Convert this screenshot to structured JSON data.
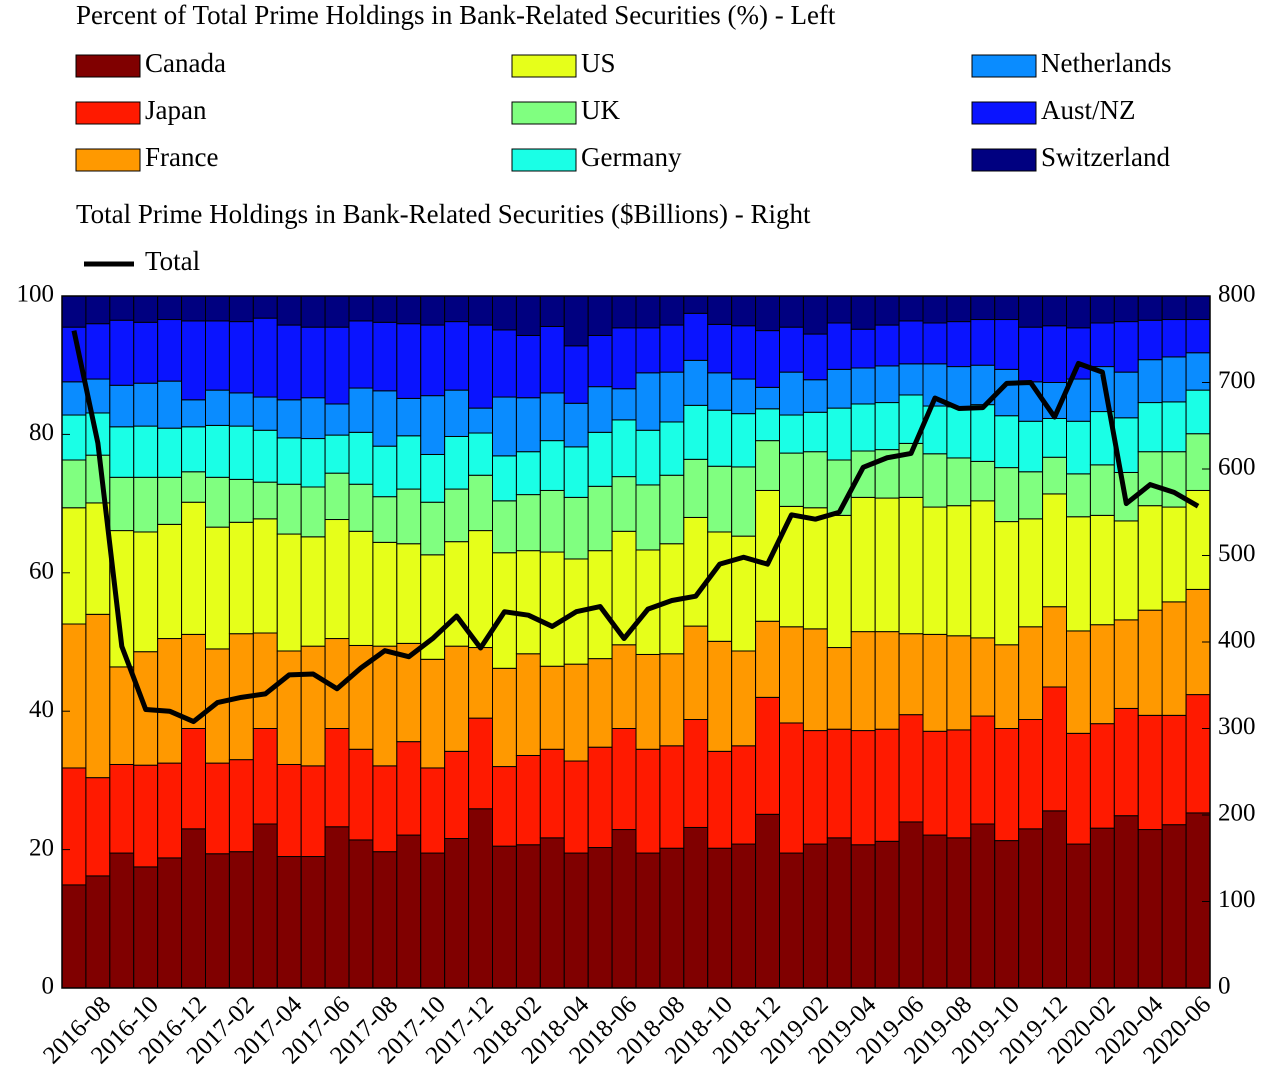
{
  "chart_data": {
    "type": "bar",
    "stacked": true,
    "title": "Percent of Total Prime Holdings in Bank-Related Securities (%) - Left",
    "subtitle": "Total Prime Holdings in Bank-Related Securities ($Billions) - Right",
    "categories": [
      null,
      "2016-08",
      null,
      "2016-10",
      null,
      "2016-12",
      null,
      "2017-02",
      null,
      "2017-04",
      null,
      "2017-06",
      null,
      "2017-08",
      null,
      "2017-10",
      null,
      "2017-12",
      null,
      "2018-02",
      null,
      "2018-04",
      null,
      "2018-06",
      null,
      "2018-08",
      null,
      "2018-10",
      null,
      "2018-12",
      null,
      "2019-02",
      null,
      "2019-04",
      null,
      "2019-06",
      null,
      "2019-08",
      null,
      "2019-10",
      null,
      "2019-12",
      null,
      "2020-02",
      null,
      "2020-04",
      null,
      "2020-06"
    ],
    "series": [
      {
        "name": "Canada",
        "color": "#800000",
        "values": [
          14.9,
          16.2,
          19.5,
          17.5,
          18.8,
          23,
          19.4,
          19.7,
          23.7,
          19,
          19,
          23.3,
          21.4,
          19.7,
          22.1,
          19.5,
          21.6,
          25.9,
          20.5,
          20.7,
          21.7,
          19.5,
          20.3,
          22.9,
          19.5,
          20.2,
          23.2,
          20.2,
          20.8,
          25.1,
          19.5,
          20.8,
          21.7,
          20.7,
          21.2,
          24,
          22.1,
          21.7,
          23.7,
          21.3,
          23,
          25.6,
          20.8,
          23.1,
          24.9,
          22.9,
          23.6,
          25.3
        ]
      },
      {
        "name": "Japan",
        "color": "#ff1a00",
        "values": [
          16.9,
          14.2,
          12.8,
          14.7,
          13.7,
          14.5,
          13.1,
          13.3,
          13.8,
          13.3,
          13.1,
          14.2,
          13.1,
          12.4,
          13.5,
          12.3,
          12.6,
          13.1,
          11.5,
          12.9,
          12.8,
          13.3,
          14.5,
          14.6,
          15,
          14.8,
          15.6,
          14,
          14.2,
          16.9,
          18.8,
          16.4,
          15.7,
          16.5,
          16.2,
          15.5,
          15,
          15.6,
          15.6,
          16.2,
          15.8,
          17.9,
          16,
          15.1,
          15.5,
          16.5,
          15.8,
          17.1
        ]
      },
      {
        "name": "France",
        "color": "#ff9900",
        "values": [
          20.8,
          23.6,
          14.1,
          16.4,
          18,
          13.6,
          16.5,
          18.2,
          13.8,
          16.4,
          17.3,
          13,
          15,
          17.3,
          14.2,
          15.7,
          15.2,
          10.2,
          14.2,
          14.7,
          12,
          14,
          12.8,
          12.1,
          13.7,
          13.3,
          13.5,
          15.9,
          13.7,
          11,
          13.9,
          14.7,
          11.8,
          14.3,
          14.1,
          11.7,
          14,
          13.6,
          11.3,
          12.1,
          13.4,
          11.6,
          14.8,
          14.3,
          12.8,
          15.2,
          16.4,
          15.2
        ]
      },
      {
        "name": "US",
        "color": "#e6ff1a",
        "values": [
          16.8,
          16.1,
          19.7,
          17.3,
          16.5,
          19.1,
          17.6,
          16.1,
          16.5,
          16.9,
          15.8,
          17.2,
          16.5,
          15,
          14.4,
          15.1,
          15.1,
          16.9,
          16.7,
          14.9,
          16.5,
          15.2,
          15.6,
          16.4,
          15.1,
          15.9,
          15.7,
          15.8,
          16.6,
          18.9,
          17.4,
          17.5,
          19.1,
          19.4,
          19.3,
          19.7,
          18.4,
          18.8,
          19.8,
          17.8,
          15.6,
          16.3,
          16.5,
          15.8,
          14.3,
          15.1,
          13.7,
          14.3
        ]
      },
      {
        "name": "UK",
        "color": "#80ff80",
        "values": [
          6.9,
          6.9,
          7.7,
          7.9,
          6.8,
          4.4,
          7.2,
          6.2,
          5.3,
          7.2,
          7.2,
          6.7,
          6.8,
          6.6,
          7.9,
          7.6,
          7.6,
          8,
          7.5,
          8.1,
          8.9,
          8.9,
          9.3,
          7.9,
          9.4,
          9.9,
          8.4,
          9.5,
          10,
          7.2,
          7.7,
          8.1,
          8,
          6.7,
          7,
          7.8,
          7.7,
          6.9,
          5.7,
          7.8,
          6.8,
          5.3,
          6.2,
          7.3,
          7,
          7.8,
          8,
          8.2
        ]
      },
      {
        "name": "Germany",
        "color": "#1affe6",
        "values": [
          6.5,
          6.1,
          7.3,
          7.4,
          7.1,
          6.5,
          7.5,
          7.7,
          7.5,
          6.7,
          7,
          5.5,
          7.5,
          7.3,
          7.7,
          6.9,
          7.6,
          6.1,
          6.5,
          6.2,
          7.2,
          7.3,
          7.8,
          8.2,
          7.9,
          7.7,
          7.8,
          8.1,
          7.7,
          4.6,
          5.5,
          5.7,
          7.5,
          6.8,
          6.8,
          7,
          6.9,
          7.4,
          8.2,
          7.5,
          7.3,
          5.6,
          7.6,
          7.7,
          7.9,
          7.1,
          7.2,
          6.3
        ]
      },
      {
        "name": "Netherlands",
        "color": "#0a8cff",
        "values": [
          4.8,
          4.9,
          6,
          6.2,
          6.8,
          3.9,
          5.1,
          4.8,
          4.8,
          5.5,
          5.9,
          4.5,
          6.4,
          8,
          5.4,
          8.5,
          6.7,
          3.6,
          8.5,
          7.8,
          6.9,
          6.3,
          6.6,
          4.5,
          8.3,
          7.2,
          6.5,
          5.4,
          5,
          3.1,
          6.2,
          4.7,
          5.6,
          5.2,
          5.3,
          4.5,
          6.1,
          5.8,
          5.7,
          6.7,
          5.7,
          5.2,
          6.1,
          6.5,
          6.6,
          6.2,
          6.5,
          5.4
        ]
      },
      {
        "name": "Aust/NZ",
        "color": "#0a14ff",
        "values": [
          7.9,
          8,
          9.4,
          8.8,
          8.9,
          11.4,
          10,
          10.3,
          11.4,
          10.8,
          10.2,
          11.1,
          9.7,
          9.9,
          10.8,
          10.2,
          9.9,
          12,
          9.7,
          9,
          9.6,
          8.3,
          7.4,
          8.8,
          6.5,
          6.8,
          6.8,
          7,
          7.7,
          8.2,
          6.5,
          6.6,
          6.7,
          5.6,
          5.9,
          6.2,
          5.9,
          6.5,
          6.6,
          7.2,
          7.9,
          8.2,
          7.4,
          6.3,
          7.3,
          5.7,
          5.4,
          4.8
        ]
      },
      {
        "name": "Switzerland",
        "color": "#000080",
        "values": [
          4.5,
          4,
          3.5,
          3.8,
          3.4,
          3.6,
          3.6,
          3.7,
          3.2,
          4.2,
          4.5,
          4.5,
          3.6,
          3.8,
          4,
          4.2,
          3.7,
          4.2,
          4.9,
          5.7,
          4.4,
          7.2,
          5.7,
          4.6,
          4.6,
          4.2,
          2.5,
          4.1,
          4.3,
          5,
          4.5,
          5.5,
          3.9,
          4.8,
          4.2,
          3.6,
          3.9,
          3.7,
          3.4,
          3.4,
          4.5,
          4.3,
          4.6,
          3.9,
          3.7,
          3.5,
          3.4,
          3.4
        ]
      },
      {
        "name": "Total",
        "type": "line",
        "axis": "y2",
        "color": "#000000",
        "values": [
          760,
          630,
          395,
          322,
          320,
          308,
          330,
          336,
          340,
          362,
          363,
          346,
          370,
          390,
          383,
          404,
          430,
          393,
          435,
          431,
          418,
          435,
          441,
          404,
          438,
          448,
          453,
          490,
          498,
          490,
          547,
          542,
          550,
          602,
          613,
          618,
          682,
          670,
          671,
          699,
          700,
          660,
          722,
          712,
          560,
          582,
          573,
          557
        ]
      }
    ],
    "ylim": [
      0,
      100
    ],
    "yticks": [
      0,
      20,
      40,
      60,
      80,
      100
    ],
    "y2lim": [
      0,
      800
    ],
    "y2ticks": [
      0,
      100,
      200,
      300,
      400,
      500,
      600,
      700,
      800
    ]
  }
}
